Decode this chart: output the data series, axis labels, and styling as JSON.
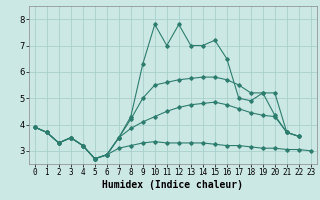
{
  "title": "",
  "xlabel": "Humidex (Indice chaleur)",
  "background_color": "#cce8e4",
  "line_color": "#2d7d6e",
  "grid_color": "#aacfcb",
  "xlim": [
    -0.5,
    23.5
  ],
  "ylim": [
    2.5,
    8.5
  ],
  "xticks": [
    0,
    1,
    2,
    3,
    4,
    5,
    6,
    7,
    8,
    9,
    10,
    11,
    12,
    13,
    14,
    15,
    16,
    17,
    18,
    19,
    20,
    21,
    22,
    23
  ],
  "yticks": [
    3,
    4,
    5,
    6,
    7,
    8
  ],
  "lines": [
    {
      "x": [
        0,
        1,
        2,
        3,
        4,
        5,
        6,
        7,
        8,
        9,
        10,
        11,
        12,
        13,
        14,
        15,
        16,
        17,
        18,
        19,
        20,
        21,
        22,
        23
      ],
      "y": [
        3.9,
        3.7,
        3.3,
        3.5,
        3.2,
        2.7,
        2.85,
        3.1,
        3.2,
        3.3,
        3.35,
        3.3,
        3.3,
        3.3,
        3.3,
        3.25,
        3.2,
        3.2,
        3.15,
        3.1,
        3.1,
        3.05,
        3.05,
        3.0
      ]
    },
    {
      "x": [
        0,
        1,
        2,
        3,
        4,
        5,
        6,
        7,
        8,
        9,
        10,
        11,
        12,
        13,
        14,
        15,
        16,
        17,
        18,
        19,
        20,
        21,
        22
      ],
      "y": [
        3.9,
        3.7,
        3.3,
        3.5,
        3.2,
        2.7,
        2.85,
        3.5,
        3.85,
        4.1,
        4.3,
        4.5,
        4.65,
        4.75,
        4.8,
        4.85,
        4.75,
        4.6,
        4.45,
        4.35,
        4.3,
        3.7,
        3.55
      ]
    },
    {
      "x": [
        0,
        1,
        2,
        3,
        4,
        5,
        6,
        7,
        8,
        9,
        10,
        11,
        12,
        13,
        14,
        15,
        16,
        17,
        18,
        19,
        20,
        21,
        22
      ],
      "y": [
        3.9,
        3.7,
        3.3,
        3.5,
        3.2,
        2.7,
        2.85,
        3.5,
        4.2,
        5.0,
        5.5,
        5.6,
        5.7,
        5.75,
        5.8,
        5.8,
        5.7,
        5.5,
        5.2,
        5.2,
        4.35,
        3.7,
        3.55
      ]
    },
    {
      "x": [
        0,
        1,
        2,
        3,
        4,
        5,
        6,
        7,
        8,
        9,
        10,
        11,
        12,
        13,
        14,
        15,
        16,
        17,
        18,
        19,
        20,
        21,
        22
      ],
      "y": [
        3.9,
        3.7,
        3.3,
        3.5,
        3.2,
        2.7,
        2.85,
        3.5,
        4.3,
        6.3,
        7.8,
        7.0,
        7.8,
        7.0,
        7.0,
        7.2,
        6.5,
        5.0,
        4.9,
        5.2,
        5.2,
        3.7,
        3.55
      ]
    }
  ]
}
